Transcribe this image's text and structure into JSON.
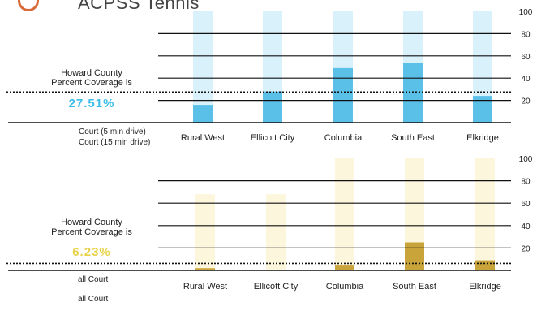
{
  "page_title": "ACPSS Tennis",
  "colors": {
    "chart1_bar": "#5bc0e8",
    "chart1_bar_light": "#d9f1fb",
    "chart1_value": "#3bbde9",
    "chart2_bar": "#c9a43a",
    "chart2_bar_light": "#fbf6dc",
    "chart2_value": "#e9d34a"
  },
  "chart_data": [
    {
      "type": "bar",
      "categories": [
        "Rural West",
        "Ellicott City",
        "Columbia",
        "South East",
        "Elkridge"
      ],
      "series": [
        {
          "values": [
            16,
            28,
            49,
            54,
            24
          ]
        },
        {
          "values": [
            100,
            100,
            100,
            100,
            100
          ]
        }
      ],
      "y_ticks": [
        20,
        40,
        60,
        80,
        100
      ],
      "ylim": [
        0,
        100
      ],
      "reference_line": {
        "value": 27.51,
        "style": "dotted"
      },
      "coverage_label": "Howard County\nPercent Coverage is",
      "coverage_value": "27.51%",
      "legend": [
        "Court (5 min drive)",
        "Court (15 min drive)"
      ]
    },
    {
      "type": "bar",
      "categories": [
        "Rural West",
        "Ellicott City",
        "Columbia",
        "South East",
        "Elkridge"
      ],
      "series": [
        {
          "values": [
            2,
            0,
            5,
            25,
            9
          ]
        },
        {
          "values": [
            68,
            68,
            100,
            100,
            100
          ]
        }
      ],
      "y_ticks": [
        20,
        40,
        60,
        80,
        100
      ],
      "ylim": [
        0,
        100
      ],
      "reference_line": {
        "value": 6.23,
        "style": "dotted"
      },
      "coverage_label": "Howard County\nPercent Coverage is",
      "coverage_value": "6.23%",
      "legend": [
        "all Court",
        "all Court"
      ]
    }
  ]
}
